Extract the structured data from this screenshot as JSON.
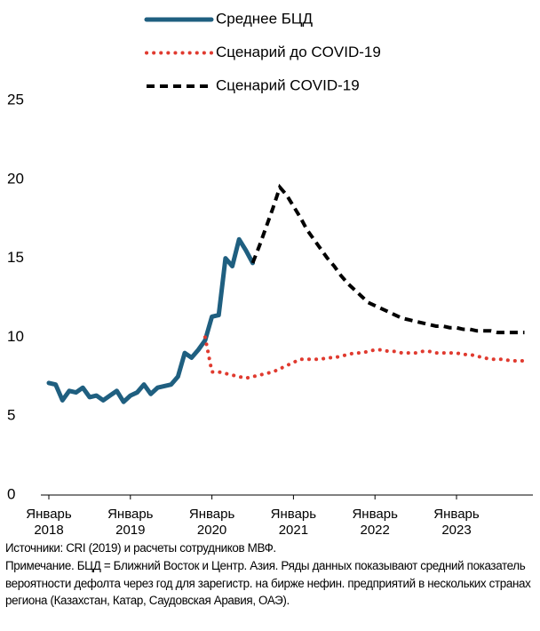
{
  "chart_data": {
    "type": "line",
    "categories": [
      "Январь 2018",
      null,
      null,
      null,
      null,
      null,
      null,
      null,
      null,
      null,
      null,
      null,
      "Январь 2019",
      null,
      null,
      null,
      null,
      null,
      null,
      null,
      null,
      null,
      null,
      null,
      "Январь 2020",
      null,
      null,
      null,
      null,
      null,
      null,
      null,
      null,
      null,
      null,
      null,
      "Январь 2021",
      null,
      null,
      null,
      null,
      null,
      null,
      null,
      null,
      null,
      null,
      null,
      "Январь 2022",
      null,
      null,
      null,
      null,
      null,
      null,
      null,
      null,
      null,
      null,
      null,
      "Январь 2023",
      null,
      null,
      null,
      null,
      null,
      null,
      null,
      null,
      null,
      null
    ],
    "series": [
      {
        "name": "Среднее БЦД",
        "color": "#1f5f80",
        "style": "solid",
        "values": [
          7.1,
          7.0,
          6.0,
          6.6,
          6.5,
          6.8,
          6.2,
          6.3,
          6.0,
          6.3,
          6.6,
          5.9,
          6.3,
          6.5,
          7.0,
          6.4,
          6.8,
          6.9,
          7.0,
          7.5,
          9.0,
          8.7,
          9.2,
          9.8,
          11.3,
          11.4,
          15.0,
          14.5,
          16.2,
          15.5,
          14.7,
          null,
          null,
          null,
          null,
          null,
          null,
          null,
          null,
          null,
          null,
          null,
          null,
          null,
          null,
          null,
          null,
          null,
          null,
          null,
          null,
          null,
          null,
          null,
          null,
          null,
          null,
          null,
          null,
          null,
          null,
          null,
          null,
          null,
          null,
          null,
          null,
          null,
          null,
          null,
          null
        ]
      },
      {
        "name": "Сценарий до COVID-19",
        "color": "#e03a2f",
        "style": "dotted",
        "values": [
          null,
          null,
          null,
          null,
          null,
          null,
          null,
          null,
          null,
          null,
          null,
          null,
          null,
          null,
          null,
          null,
          null,
          null,
          null,
          null,
          null,
          null,
          null,
          10.0,
          7.8,
          7.8,
          7.7,
          7.6,
          7.5,
          7.4,
          7.5,
          7.6,
          7.7,
          7.8,
          8.0,
          8.2,
          8.4,
          8.6,
          8.6,
          8.6,
          8.6,
          8.7,
          8.7,
          8.8,
          8.9,
          9.0,
          9.0,
          9.1,
          9.2,
          9.2,
          9.1,
          9.1,
          9.0,
          9.0,
          9.0,
          9.1,
          9.1,
          9.0,
          9.0,
          9.0,
          9.0,
          8.9,
          8.9,
          8.8,
          8.7,
          8.6,
          8.6,
          8.6,
          8.5,
          8.5,
          8.5
        ]
      },
      {
        "name": "Сценарий COVID-19",
        "color": "#000000",
        "style": "dashed",
        "values": [
          null,
          null,
          null,
          null,
          null,
          null,
          null,
          null,
          null,
          null,
          null,
          null,
          null,
          null,
          null,
          null,
          null,
          null,
          null,
          null,
          null,
          null,
          null,
          null,
          null,
          null,
          null,
          null,
          null,
          null,
          14.7,
          15.8,
          17.0,
          18.2,
          19.5,
          19.0,
          18.3,
          17.6,
          16.8,
          16.2,
          15.6,
          15.0,
          14.5,
          13.9,
          13.4,
          13.0,
          12.6,
          12.2,
          12.0,
          11.8,
          11.6,
          11.4,
          11.2,
          11.1,
          11.0,
          10.9,
          10.8,
          10.7,
          10.7,
          10.6,
          10.6,
          10.5,
          10.5,
          10.4,
          10.4,
          10.4,
          10.3,
          10.3,
          10.3,
          10.3,
          10.3
        ]
      }
    ],
    "ylim": [
      0,
      25
    ],
    "yticks": [
      0,
      5,
      10,
      15,
      20,
      25
    ],
    "grid": false,
    "source": "Источники: CRI (2019) и расчеты сотрудников МВФ.",
    "note": "Примечание. БЦД = Ближний Восток и Центр. Азия. Ряды данных показывают средний показатель вероятности дефолта через год для зарегистр. на бирже нефин. предприятий в нескольких странах региона (Казахстан, Катар, Саудовская Аравия, ОАЭ)."
  }
}
